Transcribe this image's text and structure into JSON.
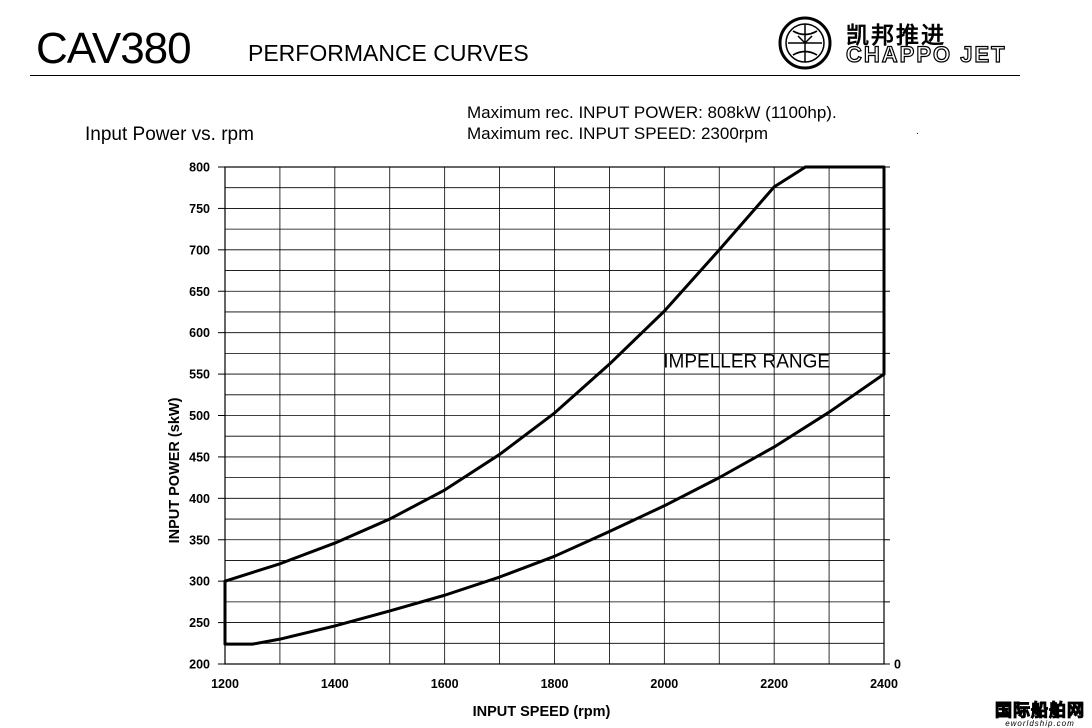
{
  "header": {
    "model": "CAV380",
    "title": "PERFORMANCE CURVES",
    "logo_cn": "凯邦推进",
    "logo_en": "CHAPPO JET"
  },
  "subtitle": "Input Power vs. rpm",
  "notes": [
    "Maximum rec. INPUT POWER: 808kW (1100hp).",
    "Maximum rec. INPUT SPEED: 2300rpm"
  ],
  "stray_mark": ".",
  "watermark": {
    "cn": "国际船舶网",
    "en": "eworldship.com"
  },
  "chart_data": {
    "type": "line",
    "title": "",
    "xlabel": "INPUT SPEED (rpm)",
    "ylabel": "INPUT POWER (skW)",
    "xlim": [
      1200,
      2400
    ],
    "ylim": [
      200,
      800
    ],
    "x_major_ticks": [
      1200,
      1400,
      1600,
      1800,
      2000,
      2200,
      2400
    ],
    "x_gridlines_every": 100,
    "y_ticks": [
      200,
      250,
      300,
      350,
      400,
      450,
      500,
      550,
      600,
      650,
      700,
      750,
      800
    ],
    "y_gridlines_every": 25,
    "right_axis_ticks": [
      "0"
    ],
    "grid": true,
    "annotation": "IMPELLER RANGE",
    "series": [
      {
        "x": [
          1200,
          1300,
          1400,
          1500,
          1600,
          1700,
          1800,
          1900,
          2000,
          2100,
          2200,
          2257
        ],
        "y": [
          300,
          321,
          346,
          375,
          410,
          453,
          503,
          562,
          626,
          700,
          776,
          820
        ]
      },
      {
        "x": [
          1250,
          1300,
          1400,
          1500,
          1600,
          1700,
          1800,
          1900,
          2000,
          2100,
          2200,
          2300,
          2400
        ],
        "y": [
          224,
          230,
          246,
          264,
          283,
          305,
          330,
          360,
          391,
          425,
          462,
          504,
          550
        ]
      },
      {
        "x": [
          1200,
          1200,
          1250
        ],
        "y": [
          300,
          224,
          224
        ]
      },
      {
        "x": [
          2257,
          2400,
          2400
        ],
        "y": [
          820,
          820,
          550
        ]
      }
    ]
  }
}
